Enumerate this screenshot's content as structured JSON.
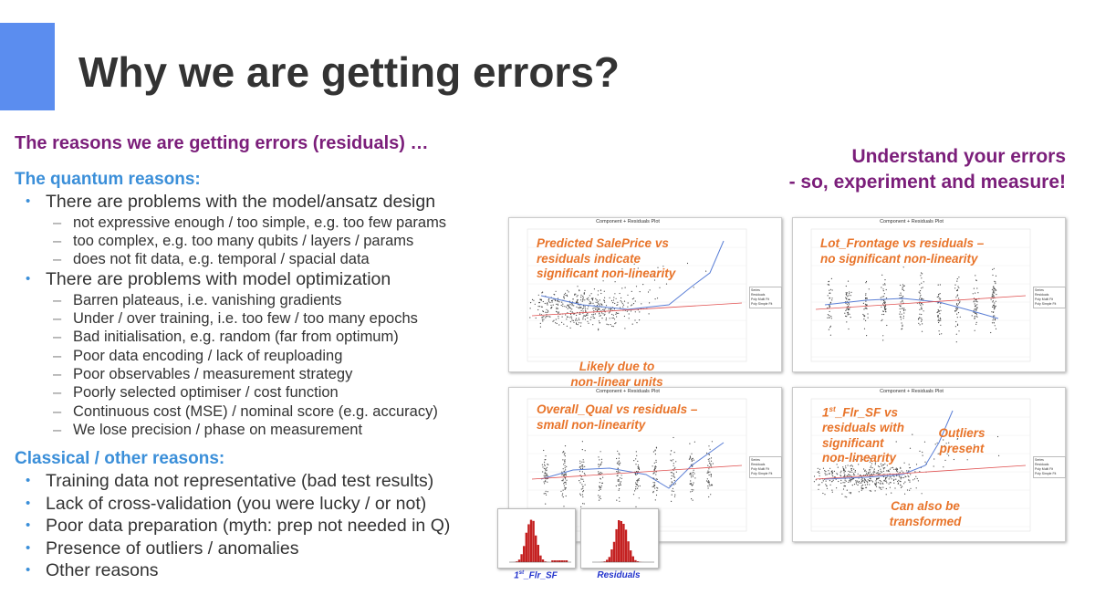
{
  "title": "Why we are getting errors?",
  "subtitle": "The reasons we are getting errors (residuals) …",
  "right_heading": [
    "Understand your errors",
    "- so, experiment and measure!"
  ],
  "sections": [
    {
      "heading": "The quantum reasons:",
      "items": [
        {
          "text": "There are problems with the model/ansatz design",
          "subitems": [
            "not expressive enough / too simple, e.g. too few params",
            "too complex, e.g. too many qubits / layers / params",
            "does not fit data, e.g. temporal / spacial data"
          ]
        },
        {
          "text": "There are problems with model optimization",
          "subitems": [
            "Barren plateaus, i.e. vanishing gradients",
            "Under / over training, i.e. too few / too many epochs",
            "Bad initialisation, e.g. random (far from optimum)",
            "Poor data encoding / lack of reuploading",
            "Poor observables / measurement strategy",
            "Poorly selected optimiser / cost function",
            "Continuous cost (MSE) / nominal score (e.g. accuracy)",
            "We lose precision / phase on measurement"
          ]
        }
      ]
    },
    {
      "heading": "Classical / other reasons:",
      "items": [
        {
          "text": "Training data not representative (bad test results)",
          "subitems": []
        },
        {
          "text": "Lack of cross-validation (you were lucky / or not)",
          "subitems": []
        },
        {
          "text": "Poor data preparation (myth: prep not needed in Q)",
          "subitems": []
        },
        {
          "text": "Presence of outliers / anomalies",
          "subitems": []
        },
        {
          "text": "Other reasons",
          "subitems": []
        }
      ]
    }
  ],
  "plot_legend": [
    "Series",
    "Residuals",
    "Poly Multi Fit",
    "Poly Simple Fit"
  ],
  "plots": [
    {
      "title": "Component + Residuals Plot",
      "annotations": [
        [
          "Predicted SalePrice vs",
          "residuals indicate",
          "significant non-linearity"
        ],
        [
          "Likely due to",
          "non-linear units"
        ]
      ]
    },
    {
      "title": "Component + Residuals Plot",
      "annotations": [
        [
          "Lot_Frontage vs residuals –",
          "no significant non-linearity"
        ]
      ]
    },
    {
      "title": "Component + Residuals Plot",
      "annotations": [
        [
          "Overall_Qual vs residuals –",
          "small non-linearity"
        ]
      ]
    },
    {
      "title": "Component + Residuals Plot",
      "annotations": [
        [
          {
            "base": "1",
            "sup": "st",
            "rest": "_Flr_SF vs"
          },
          "residuals with",
          "significant",
          "non-linearity"
        ],
        [
          "Outliers",
          "present"
        ],
        [
          "Can also be",
          "transformed"
        ]
      ]
    }
  ],
  "histograms": [
    {
      "base": "1",
      "sup": "st",
      "rest": "_Flr_SF"
    },
    {
      "base": "Residuals",
      "sup": "",
      "rest": ""
    }
  ]
}
